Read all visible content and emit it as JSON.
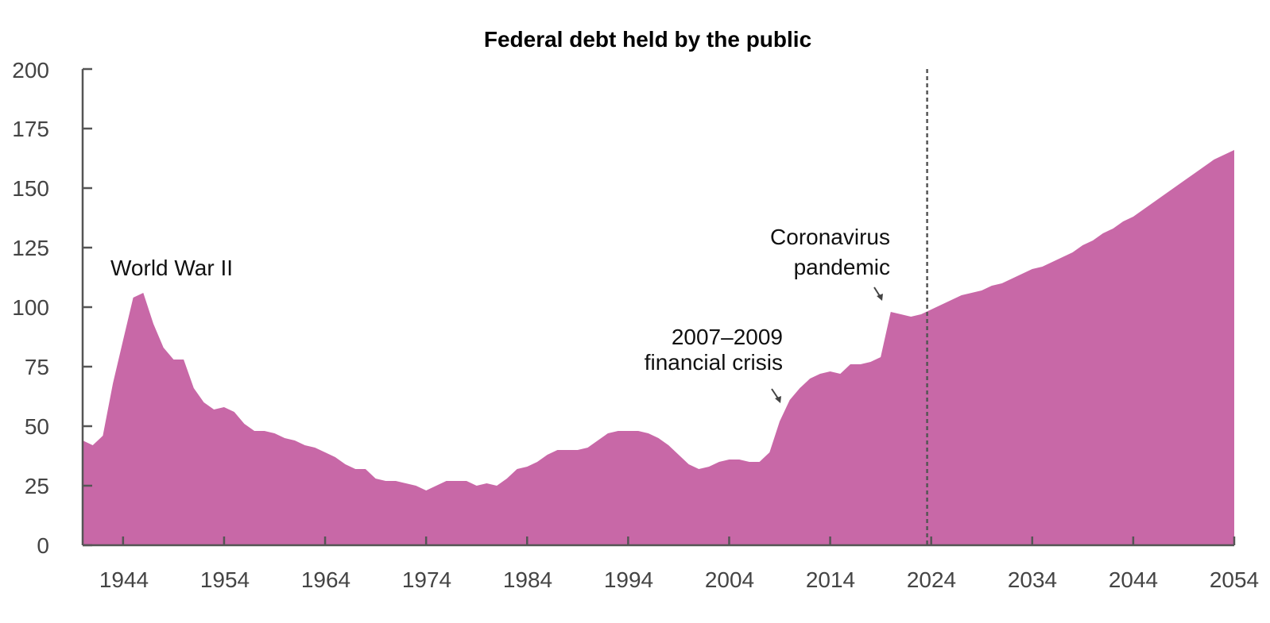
{
  "chart_data": {
    "type": "area",
    "title": "Federal debt held by the public",
    "xlabel": "",
    "ylabel": "",
    "xlim": [
      1940,
      2054
    ],
    "ylim": [
      0,
      200
    ],
    "grid": false,
    "legend": null,
    "color": "#C868A7",
    "y_ticks": [
      0,
      25,
      50,
      75,
      100,
      125,
      150,
      175,
      200
    ],
    "x_ticks": [
      1944,
      1954,
      1964,
      1974,
      1984,
      1994,
      2004,
      2014,
      2024,
      2034,
      2044,
      2054
    ],
    "projection_start_marker": 2023.6,
    "annotations": [
      {
        "id": "ww2",
        "lines": [
          "World War II"
        ],
        "year": 1946
      },
      {
        "id": "financial-crisis",
        "lines": [
          "2007–2009",
          "financial crisis"
        ],
        "year": 2009
      },
      {
        "id": "coronavirus",
        "lines": [
          "Coronavirus",
          "pandemic"
        ],
        "year": 2020
      }
    ],
    "x": [
      1940,
      1941,
      1942,
      1943,
      1944,
      1945,
      1946,
      1947,
      1948,
      1949,
      1950,
      1951,
      1952,
      1953,
      1954,
      1955,
      1956,
      1957,
      1958,
      1959,
      1960,
      1961,
      1962,
      1963,
      1964,
      1965,
      1966,
      1967,
      1968,
      1969,
      1970,
      1971,
      1972,
      1973,
      1974,
      1975,
      1976,
      1977,
      1978,
      1979,
      1980,
      1981,
      1982,
      1983,
      1984,
      1985,
      1986,
      1987,
      1988,
      1989,
      1990,
      1991,
      1992,
      1993,
      1994,
      1995,
      1996,
      1997,
      1998,
      1999,
      2000,
      2001,
      2002,
      2003,
      2004,
      2005,
      2006,
      2007,
      2008,
      2009,
      2010,
      2011,
      2012,
      2013,
      2014,
      2015,
      2016,
      2017,
      2018,
      2019,
      2020,
      2021,
      2022,
      2023,
      2024,
      2025,
      2026,
      2027,
      2028,
      2029,
      2030,
      2031,
      2032,
      2033,
      2034,
      2035,
      2036,
      2037,
      2038,
      2039,
      2040,
      2041,
      2042,
      2043,
      2044,
      2045,
      2046,
      2047,
      2048,
      2049,
      2050,
      2051,
      2052,
      2053,
      2054
    ],
    "series": [
      {
        "name": "Federal debt held by the public",
        "values": [
          44,
          42,
          46,
          68,
          86,
          104,
          106,
          93,
          83,
          78,
          78,
          66,
          60,
          57,
          58,
          56,
          51,
          48,
          48,
          47,
          45,
          44,
          42,
          41,
          39,
          37,
          34,
          32,
          32,
          28,
          27,
          27,
          26,
          25,
          23,
          25,
          27,
          27,
          27,
          25,
          26,
          25,
          28,
          32,
          33,
          35,
          38,
          40,
          40,
          40,
          41,
          44,
          47,
          48,
          48,
          48,
          47,
          45,
          42,
          38,
          34,
          32,
          33,
          35,
          36,
          36,
          35,
          35,
          39,
          52,
          61,
          66,
          70,
          72,
          73,
          72,
          76,
          76,
          77,
          79,
          98,
          97,
          96,
          97,
          99,
          101,
          103,
          105,
          106,
          107,
          109,
          110,
          112,
          114,
          116,
          117,
          119,
          121,
          123,
          126,
          128,
          131,
          133,
          136,
          138,
          141,
          144,
          147,
          150,
          153,
          156,
          159,
          162,
          164,
          166
        ]
      }
    ]
  },
  "header": {
    "title": "Federal debt held by the public"
  },
  "axes": {
    "y_tick_labels": [
      "0",
      "25",
      "50",
      "75",
      "100",
      "125",
      "150",
      "175",
      "200"
    ],
    "x_tick_labels": [
      "1944",
      "1954",
      "1964",
      "1974",
      "1984",
      "1994",
      "2004",
      "2014",
      "2024",
      "2034",
      "2044",
      "2054"
    ]
  },
  "annotations": {
    "ww2": "World War II",
    "crisis_line1": "2007–2009",
    "crisis_line2": "financial crisis",
    "covid_line1": "Coronavirus",
    "covid_line2": "pandemic"
  }
}
